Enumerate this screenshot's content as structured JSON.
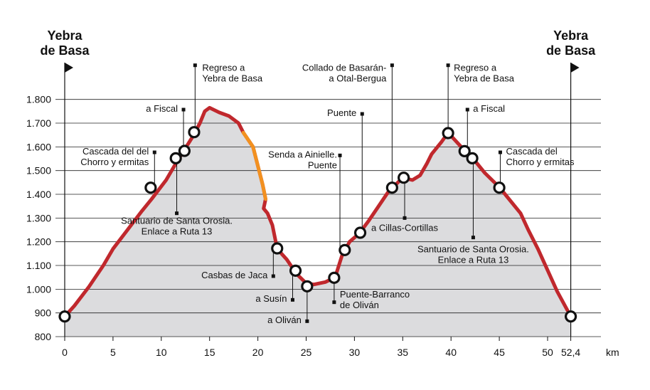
{
  "chart_data": {
    "type": "area",
    "x_unit": "km",
    "xlim": [
      0,
      52.4
    ],
    "ylim": [
      800,
      1800
    ],
    "yticks": [
      "800",
      "900",
      "1.000",
      "1.100",
      "1.200",
      "1.300",
      "1.400",
      "1.500",
      "1.600",
      "1.700",
      "1.800"
    ],
    "ytick_values": [
      800,
      900,
      1000,
      1100,
      1200,
      1300,
      1400,
      1500,
      1600,
      1700,
      1800
    ],
    "xticks": [
      "0",
      "5",
      "10",
      "15",
      "20",
      "25",
      "30",
      "35",
      "40",
      "45",
      "50",
      "52,4"
    ],
    "xtick_values": [
      0,
      5,
      10,
      15,
      20,
      25,
      30,
      35,
      40,
      45,
      50,
      52.4
    ],
    "grid": true,
    "colors": {
      "fill": "#dcdcde",
      "line": "#c0282d",
      "highlight": "#f29120",
      "grid": "#222222"
    },
    "profile": [
      [
        0,
        885
      ],
      [
        1,
        930
      ],
      [
        2.5,
        1010
      ],
      [
        4,
        1100
      ],
      [
        5,
        1170
      ],
      [
        6.5,
        1250
      ],
      [
        8,
        1330
      ],
      [
        9,
        1380
      ],
      [
        10.5,
        1460
      ],
      [
        11.5,
        1530
      ],
      [
        12.2,
        1575
      ],
      [
        13.2,
        1640
      ],
      [
        14,
        1700
      ],
      [
        14.5,
        1750
      ],
      [
        15,
        1765
      ],
      [
        16,
        1745
      ],
      [
        17,
        1730
      ],
      [
        18,
        1700
      ],
      [
        18.5,
        1660
      ],
      [
        19.5,
        1600
      ],
      [
        20,
        1520
      ],
      [
        20.5,
        1440
      ],
      [
        20.8,
        1380
      ],
      [
        20.6,
        1340
      ],
      [
        21,
        1320
      ],
      [
        21.5,
        1270
      ],
      [
        22,
        1170
      ],
      [
        23,
        1125
      ],
      [
        24,
        1065
      ],
      [
        25,
        1025
      ],
      [
        25.8,
        1020
      ],
      [
        27,
        1030
      ],
      [
        28,
        1050
      ],
      [
        28.7,
        1140
      ],
      [
        29.5,
        1200
      ],
      [
        30.5,
        1235
      ],
      [
        31.5,
        1290
      ],
      [
        32.5,
        1350
      ],
      [
        33.5,
        1410
      ],
      [
        34,
        1430
      ],
      [
        35,
        1470
      ],
      [
        36,
        1460
      ],
      [
        36.8,
        1480
      ],
      [
        37.5,
        1530
      ],
      [
        38,
        1570
      ],
      [
        39,
        1620
      ],
      [
        39.7,
        1660
      ],
      [
        41.5,
        1580
      ],
      [
        42.3,
        1550
      ],
      [
        43.5,
        1490
      ],
      [
        45,
        1430
      ],
      [
        46.2,
        1370
      ],
      [
        47.2,
        1320
      ],
      [
        48,
        1250
      ],
      [
        49,
        1170
      ],
      [
        50,
        1080
      ],
      [
        51,
        990
      ],
      [
        52.4,
        885
      ]
    ],
    "highlight_range": [
      18.5,
      20.8
    ],
    "waypoints": [
      {
        "x": 0,
        "y": 885
      },
      {
        "x": 8.9,
        "y": 1428
      },
      {
        "x": 11.5,
        "y": 1552
      },
      {
        "x": 12.4,
        "y": 1583
      },
      {
        "x": 13.4,
        "y": 1662
      },
      {
        "x": 22,
        "y": 1172
      },
      {
        "x": 23.9,
        "y": 1078
      },
      {
        "x": 25.1,
        "y": 1012
      },
      {
        "x": 27.9,
        "y": 1048
      },
      {
        "x": 29,
        "y": 1165
      },
      {
        "x": 30.6,
        "y": 1238
      },
      {
        "x": 33.9,
        "y": 1428
      },
      {
        "x": 35.1,
        "y": 1470
      },
      {
        "x": 39.7,
        "y": 1658
      },
      {
        "x": 41.4,
        "y": 1582
      },
      {
        "x": 42.2,
        "y": 1552
      },
      {
        "x": 45,
        "y": 1428
      },
      {
        "x": 52.4,
        "y": 885
      }
    ],
    "annotations": [
      {
        "lines": [
          "Regreso a",
          "Yebra de Basa"
        ],
        "mx": 13.5,
        "my": 1944,
        "anchor": "start",
        "dx": 10,
        "ty": 1920
      },
      {
        "lines": [
          "a Fiscal"
        ],
        "mx": 12.3,
        "my": 1757,
        "anchor": "end",
        "dx": -8,
        "ty": 1748
      },
      {
        "lines": [
          "Cascada del del",
          "Chorro y ermitas"
        ],
        "mx": 9.3,
        "my": 1577,
        "anchor": "end",
        "dx": -8,
        "ty": 1568
      },
      {
        "lines": [
          "Santuario de Santa Orosia.",
          "Enlace a Ruta 13"
        ],
        "mx": 11.6,
        "my": 1320,
        "anchor": "middle",
        "dx": 0,
        "ty": 1275
      },
      {
        "lines": [
          "Casbas de Jaca"
        ],
        "mx": 21.6,
        "my": 1055,
        "anchor": "end",
        "dx": -8,
        "ty": 1046
      },
      {
        "lines": [
          "a Susín"
        ],
        "mx": 23.6,
        "my": 955,
        "anchor": "end",
        "dx": -8,
        "ty": 947
      },
      {
        "lines": [
          "a Oliván"
        ],
        "mx": 25.1,
        "my": 865,
        "anchor": "end",
        "dx": -8,
        "ty": 857
      },
      {
        "lines": [
          "Puente-Barranco",
          "de Oliván"
        ],
        "mx": 27.9,
        "my": 945,
        "anchor": "start",
        "dx": 8,
        "ty": 965
      },
      {
        "lines": [
          "Senda a Ainielle.",
          "Puente"
        ],
        "mx": 28.5,
        "my": 1564,
        "anchor": "end",
        "dx": -4,
        "ty": 1555
      },
      {
        "lines": [
          "Puente"
        ],
        "mx": 30.8,
        "my": 1739,
        "anchor": "end",
        "dx": -8,
        "ty": 1730
      },
      {
        "lines": [
          "Collado de Basarán-",
          "a Otal-Bergua"
        ],
        "mx": 33.9,
        "my": 1944,
        "anchor": "end",
        "dx": -8,
        "ty": 1920
      },
      {
        "lines": [
          "a Cillas-Cortillas"
        ],
        "mx": 35.2,
        "my": 1300,
        "anchor": "middle",
        "dx": 0,
        "ty": 1245
      },
      {
        "lines": [
          "Regreso a",
          "Yebra de Basa"
        ],
        "mx": 39.7,
        "my": 1944,
        "anchor": "start",
        "dx": 8,
        "ty": 1920
      },
      {
        "lines": [
          "a Fiscal"
        ],
        "mx": 41.7,
        "my": 1757,
        "anchor": "start",
        "dx": 8,
        "ty": 1748
      },
      {
        "lines": [
          "Cascada del",
          "Chorro y ermitas"
        ],
        "mx": 45.1,
        "my": 1577,
        "anchor": "start",
        "dx": 8,
        "ty": 1568
      },
      {
        "lines": [
          "Santuario de Santa Orosia.",
          "Enlace a Ruta 13"
        ],
        "mx": 42.3,
        "my": 1218,
        "anchor": "middle",
        "dx": 0,
        "ty": 1155
      }
    ],
    "endpoints": [
      {
        "lines": [
          "Yebra",
          "de Basa"
        ],
        "x": 0
      },
      {
        "lines": [
          "Yebra",
          "de Basa"
        ],
        "x": 52.4
      }
    ]
  }
}
